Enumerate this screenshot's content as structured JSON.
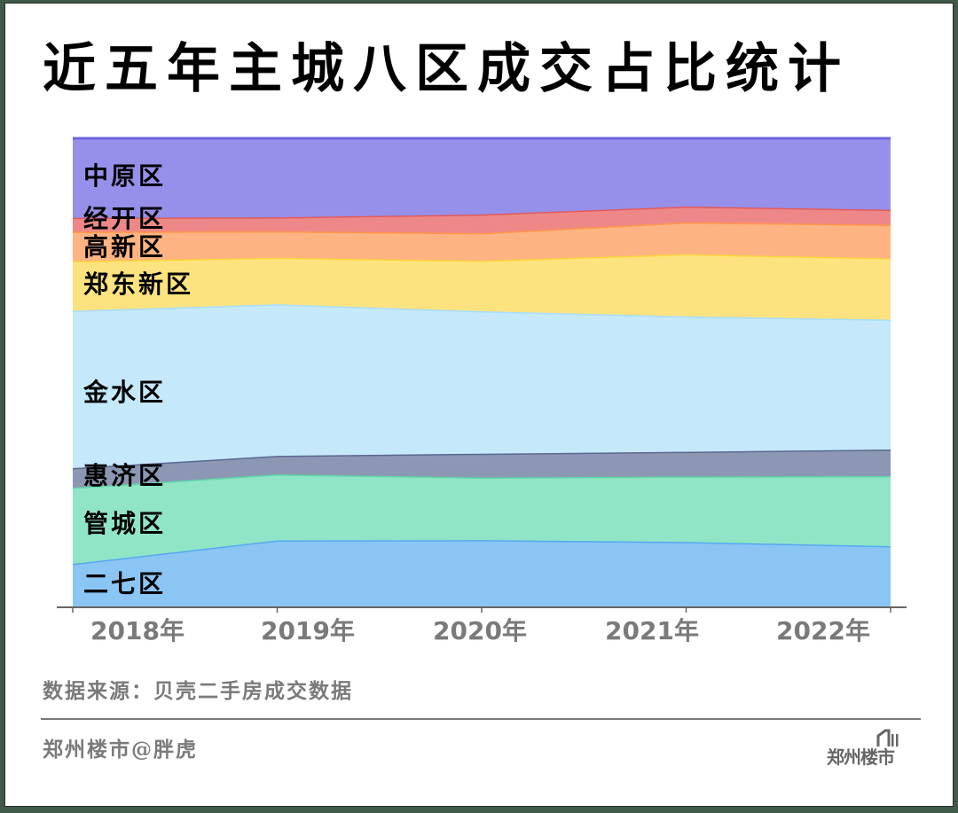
{
  "title": "近五年主城八区成交占比统计",
  "source_note": "数据来源：贝壳二手房成交数据",
  "author": "郑州楼市@胖虎",
  "logo_text": "郑州楼市",
  "colors": {
    "中原区": {
      "fill": "#9790ea",
      "line": "#6e64e0"
    },
    "经开区": {
      "fill": "#ee8888",
      "line": "#e25a5a"
    },
    "高新区": {
      "fill": "#fdb482",
      "line": "#ff9848"
    },
    "郑东新区": {
      "fill": "#fde380",
      "line": "#fdd63a"
    },
    "金水区": {
      "fill": "#c5e8fa",
      "line": "#a8def8"
    },
    "惠济区": {
      "fill": "#8c98b3",
      "line": "#5a6890"
    },
    "管城区": {
      "fill": "#91e5c7",
      "line": "#5fd9a8"
    },
    "二七区": {
      "fill": "#8bc5f4",
      "line": "#55a8f0"
    },
    "axis": "#666666",
    "tick_label": "#7a7a7a"
  },
  "chart_data": {
    "type": "area",
    "stacked": true,
    "normalized": true,
    "title": "近五年主城八区成交占比统计",
    "xlabel": "",
    "ylabel": "",
    "ylim": [
      0,
      100
    ],
    "grid": false,
    "legend_position": "inline-left",
    "categories": [
      "2018年",
      "2019年",
      "2020年",
      "2021年",
      "2022年"
    ],
    "series": [
      {
        "name": "二七区",
        "values": [
          9.1,
          14.2,
          14.2,
          13.8,
          12.9
        ]
      },
      {
        "name": "管城区",
        "values": [
          16.3,
          14.2,
          13.4,
          14.0,
          15.0
        ]
      },
      {
        "name": "惠济区",
        "values": [
          4.2,
          4.0,
          5.1,
          5.3,
          5.7
        ]
      },
      {
        "name": "金水区",
        "values": [
          33.7,
          32.6,
          30.5,
          29.0,
          27.8
        ]
      },
      {
        "name": "郑东新区",
        "values": [
          10.6,
          10.0,
          10.8,
          13.3,
          13.1
        ]
      },
      {
        "name": "高新区",
        "values": [
          6.3,
          5.7,
          5.9,
          6.8,
          7.2
        ]
      },
      {
        "name": "经开区",
        "values": [
          3.0,
          3.0,
          4.0,
          3.4,
          3.2
        ]
      },
      {
        "name": "中原区",
        "values": [
          17.0,
          17.0,
          16.3,
          14.6,
          15.3
        ]
      }
    ],
    "labels_top_to_bottom": [
      "中原区",
      "经开区",
      "高新区",
      "郑东新区",
      "金水区",
      "惠济区",
      "管城区",
      "二七区"
    ]
  }
}
